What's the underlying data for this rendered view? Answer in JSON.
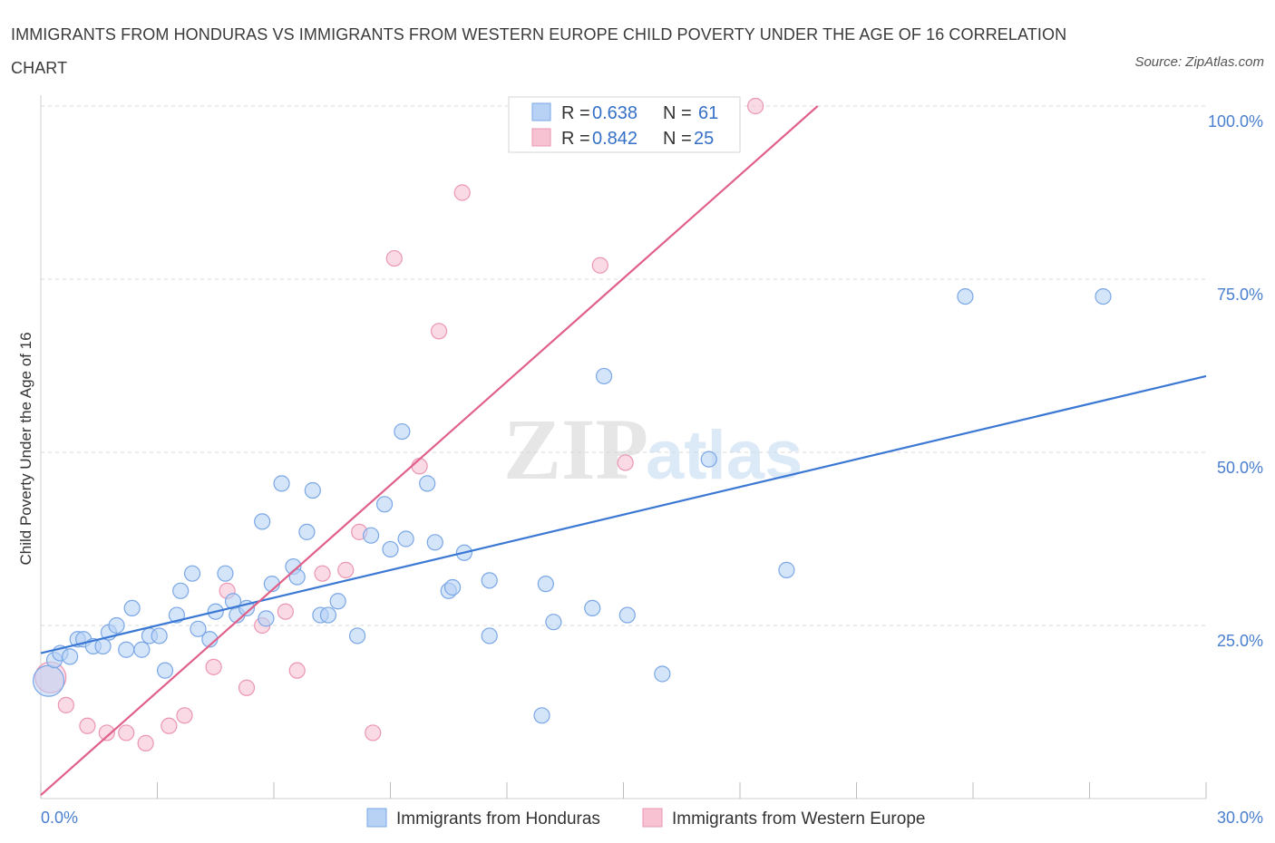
{
  "title": "IMMIGRANTS FROM HONDURAS VS IMMIGRANTS FROM WESTERN EUROPE CHILD POVERTY UNDER THE AGE OF 16 CORRELATION CHART",
  "source": "Source: ZipAtlas.com",
  "watermark": {
    "zip": "ZIP",
    "atlas": "atlas"
  },
  "colors": {
    "blue": "#3a78d4",
    "blue_fill": "#b8d2f5",
    "pink": "#e0608a",
    "pink_fill": "#f7c3d3",
    "grid": "#d8d8d8",
    "tick_text": "#4a7fd0"
  },
  "chart_data": {
    "type": "scatter",
    "xlabel": "",
    "ylabel": "Child Poverty Under the Age of 16",
    "xlim": [
      0,
      30
    ],
    "ylim": [
      0,
      100
    ],
    "x_tick_labels": [
      {
        "value": 0,
        "label": "0.0%"
      },
      {
        "value": 30,
        "label": "30.0%"
      }
    ],
    "y_tick_labels": [
      {
        "value": 25,
        "label": "25.0%"
      },
      {
        "value": 50,
        "label": "50.0%"
      },
      {
        "value": 75,
        "label": "75.0%"
      },
      {
        "value": 100,
        "label": "100.0%"
      }
    ],
    "legend": [
      {
        "r_label": "R = ",
        "r_value": "0.638",
        "n_label": "N = ",
        "n_value": "61"
      },
      {
        "r_label": "R = ",
        "r_value": "0.842",
        "n_label": "N = ",
        "n_value": "25"
      }
    ],
    "series": [
      {
        "name": "Immigrants from Honduras",
        "color": "#3a78d4",
        "trend": {
          "x": [
            0,
            30
          ],
          "y": [
            21,
            61
          ]
        },
        "points": [
          {
            "x": 0.2,
            "y": 17,
            "big": true
          },
          {
            "x": 0.35,
            "y": 20
          },
          {
            "x": 0.5,
            "y": 21
          },
          {
            "x": 0.75,
            "y": 20.5
          },
          {
            "x": 0.95,
            "y": 23
          },
          {
            "x": 1.1,
            "y": 23
          },
          {
            "x": 1.35,
            "y": 22
          },
          {
            "x": 1.6,
            "y": 22
          },
          {
            "x": 1.75,
            "y": 24
          },
          {
            "x": 1.95,
            "y": 25
          },
          {
            "x": 2.2,
            "y": 21.5
          },
          {
            "x": 2.35,
            "y": 27.5
          },
          {
            "x": 2.6,
            "y": 21.5
          },
          {
            "x": 2.8,
            "y": 23.5
          },
          {
            "x": 3.05,
            "y": 23.5
          },
          {
            "x": 3.2,
            "y": 18.5
          },
          {
            "x": 3.5,
            "y": 26.5
          },
          {
            "x": 3.6,
            "y": 30
          },
          {
            "x": 3.9,
            "y": 32.5
          },
          {
            "x": 4.05,
            "y": 24.5
          },
          {
            "x": 4.35,
            "y": 23
          },
          {
            "x": 4.5,
            "y": 27
          },
          {
            "x": 4.75,
            "y": 32.5
          },
          {
            "x": 4.95,
            "y": 28.5
          },
          {
            "x": 5.05,
            "y": 26.5
          },
          {
            "x": 5.3,
            "y": 27.5
          },
          {
            "x": 5.7,
            "y": 40
          },
          {
            "x": 5.8,
            "y": 26
          },
          {
            "x": 5.95,
            "y": 31
          },
          {
            "x": 6.2,
            "y": 45.5
          },
          {
            "x": 6.5,
            "y": 33.5
          },
          {
            "x": 6.6,
            "y": 32
          },
          {
            "x": 6.85,
            "y": 38.5
          },
          {
            "x": 7.0,
            "y": 44.5
          },
          {
            "x": 7.2,
            "y": 26.5
          },
          {
            "x": 7.4,
            "y": 26.5
          },
          {
            "x": 7.65,
            "y": 28.5
          },
          {
            "x": 8.15,
            "y": 23.5
          },
          {
            "x": 8.5,
            "y": 38
          },
          {
            "x": 8.85,
            "y": 42.5
          },
          {
            "x": 9.0,
            "y": 36
          },
          {
            "x": 9.3,
            "y": 53
          },
          {
            "x": 9.4,
            "y": 37.5
          },
          {
            "x": 9.95,
            "y": 45.5
          },
          {
            "x": 10.15,
            "y": 37
          },
          {
            "x": 10.5,
            "y": 30
          },
          {
            "x": 10.6,
            "y": 30.5
          },
          {
            "x": 10.9,
            "y": 35.5
          },
          {
            "x": 11.55,
            "y": 31.5
          },
          {
            "x": 11.55,
            "y": 23.5
          },
          {
            "x": 12.9,
            "y": 12
          },
          {
            "x": 13.0,
            "y": 31
          },
          {
            "x": 13.2,
            "y": 25.5
          },
          {
            "x": 14.2,
            "y": 27.5
          },
          {
            "x": 14.5,
            "y": 61
          },
          {
            "x": 15.1,
            "y": 26.5
          },
          {
            "x": 16.0,
            "y": 18
          },
          {
            "x": 17.2,
            "y": 49
          },
          {
            "x": 19.2,
            "y": 33
          },
          {
            "x": 23.8,
            "y": 72.5
          },
          {
            "x": 27.35,
            "y": 72.5
          }
        ]
      },
      {
        "name": "Immigrants from Western Europe",
        "color": "#e0608a",
        "trend": {
          "x": [
            0,
            20
          ],
          "y": [
            0.5,
            100
          ]
        },
        "points": [
          {
            "x": 0.25,
            "y": 17.5,
            "big": true
          },
          {
            "x": 0.65,
            "y": 13.5
          },
          {
            "x": 1.2,
            "y": 10.5
          },
          {
            "x": 1.7,
            "y": 9.5
          },
          {
            "x": 2.2,
            "y": 9.5
          },
          {
            "x": 2.7,
            "y": 8
          },
          {
            "x": 3.3,
            "y": 10.5
          },
          {
            "x": 3.7,
            "y": 12
          },
          {
            "x": 4.45,
            "y": 19
          },
          {
            "x": 4.8,
            "y": 30
          },
          {
            "x": 5.3,
            "y": 16
          },
          {
            "x": 5.7,
            "y": 25
          },
          {
            "x": 6.3,
            "y": 27
          },
          {
            "x": 6.6,
            "y": 18.5
          },
          {
            "x": 7.25,
            "y": 32.5
          },
          {
            "x": 7.85,
            "y": 33
          },
          {
            "x": 8.2,
            "y": 38.5
          },
          {
            "x": 8.55,
            "y": 9.5
          },
          {
            "x": 9.1,
            "y": 78
          },
          {
            "x": 9.75,
            "y": 48
          },
          {
            "x": 10.25,
            "y": 67.5
          },
          {
            "x": 10.85,
            "y": 87.5
          },
          {
            "x": 14.4,
            "y": 77
          },
          {
            "x": 15.05,
            "y": 48.5
          },
          {
            "x": 18.4,
            "y": 100
          }
        ]
      }
    ]
  }
}
